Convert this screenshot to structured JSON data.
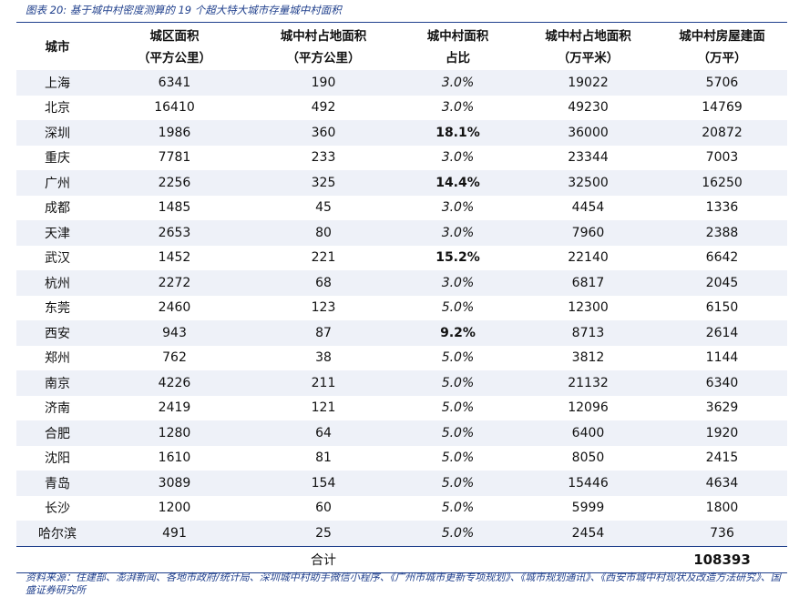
{
  "caption": "图表 20:  基于城中村密度测算的 19 个超大特大城市存量城中村面积",
  "headers": [
    {
      "l1": "城市",
      "l2": ""
    },
    {
      "l1": "城区面积",
      "l2": "（平方公里）"
    },
    {
      "l1": "城中村占地面积",
      "l2": "（平方公里）"
    },
    {
      "l1": "城中村面积",
      "l2": "占比"
    },
    {
      "l1": "城中村占地面积",
      "l2": "（万平米）"
    },
    {
      "l1": "城中村房屋建面",
      "l2": "（万平）"
    }
  ],
  "rows": [
    {
      "city": "上海",
      "area": "6341",
      "land": "190",
      "ratio": "3.0%",
      "land_wan": "19022",
      "floor": "5706"
    },
    {
      "city": "北京",
      "area": "16410",
      "land": "492",
      "ratio": "3.0%",
      "land_wan": "49230",
      "floor": "14769"
    },
    {
      "city": "深圳",
      "area": "1986",
      "land": "360",
      "ratio": "18.1%",
      "land_wan": "36000",
      "floor": "20872"
    },
    {
      "city": "重庆",
      "area": "7781",
      "land": "233",
      "ratio": "3.0%",
      "land_wan": "23344",
      "floor": "7003"
    },
    {
      "city": "广州",
      "area": "2256",
      "land": "325",
      "ratio": "14.4%",
      "land_wan": "32500",
      "floor": "16250"
    },
    {
      "city": "成都",
      "area": "1485",
      "land": "45",
      "ratio": "3.0%",
      "land_wan": "4454",
      "floor": "1336"
    },
    {
      "city": "天津",
      "area": "2653",
      "land": "80",
      "ratio": "3.0%",
      "land_wan": "7960",
      "floor": "2388"
    },
    {
      "city": "武汉",
      "area": "1452",
      "land": "221",
      "ratio": "15.2%",
      "land_wan": "22140",
      "floor": "6642"
    },
    {
      "city": "杭州",
      "area": "2272",
      "land": "68",
      "ratio": "3.0%",
      "land_wan": "6817",
      "floor": "2045"
    },
    {
      "city": "东莞",
      "area": "2460",
      "land": "123",
      "ratio": "5.0%",
      "land_wan": "12300",
      "floor": "6150"
    },
    {
      "city": "西安",
      "area": "943",
      "land": "87",
      "ratio": "9.2%",
      "land_wan": "8713",
      "floor": "2614"
    },
    {
      "city": "郑州",
      "area": "762",
      "land": "38",
      "ratio": "5.0%",
      "land_wan": "3812",
      "floor": "1144"
    },
    {
      "city": "南京",
      "area": "4226",
      "land": "211",
      "ratio": "5.0%",
      "land_wan": "21132",
      "floor": "6340"
    },
    {
      "city": "济南",
      "area": "2419",
      "land": "121",
      "ratio": "5.0%",
      "land_wan": "12096",
      "floor": "3629"
    },
    {
      "city": "合肥",
      "area": "1280",
      "land": "64",
      "ratio": "5.0%",
      "land_wan": "6400",
      "floor": "1920"
    },
    {
      "city": "沈阳",
      "area": "1610",
      "land": "81",
      "ratio": "5.0%",
      "land_wan": "8050",
      "floor": "2415"
    },
    {
      "city": "青岛",
      "area": "3089",
      "land": "154",
      "ratio": "5.0%",
      "land_wan": "15446",
      "floor": "4634"
    },
    {
      "city": "长沙",
      "area": "1200",
      "land": "60",
      "ratio": "5.0%",
      "land_wan": "5999",
      "floor": "1800"
    },
    {
      "city": "哈尔滨",
      "area": "491",
      "land": "25",
      "ratio": "5.0%",
      "land_wan": "2454",
      "floor": "736"
    }
  ],
  "highlighted_ratios": [
    "18.1%",
    "14.4%",
    "15.2%",
    "9.2%"
  ],
  "total": {
    "label": "合计",
    "value": "108393"
  },
  "source": "资料来源：住建部、澎湃新闻、各地市政府/统计局、深圳城中村助手微信小程序、《广州市城市更新专项规划》、《城市规划通讯》、《西安市城中村现状及改造方法研究》、国盛证券研究所",
  "colors": {
    "accent": "#1f3f8c",
    "stripe": "#eef1f8"
  }
}
